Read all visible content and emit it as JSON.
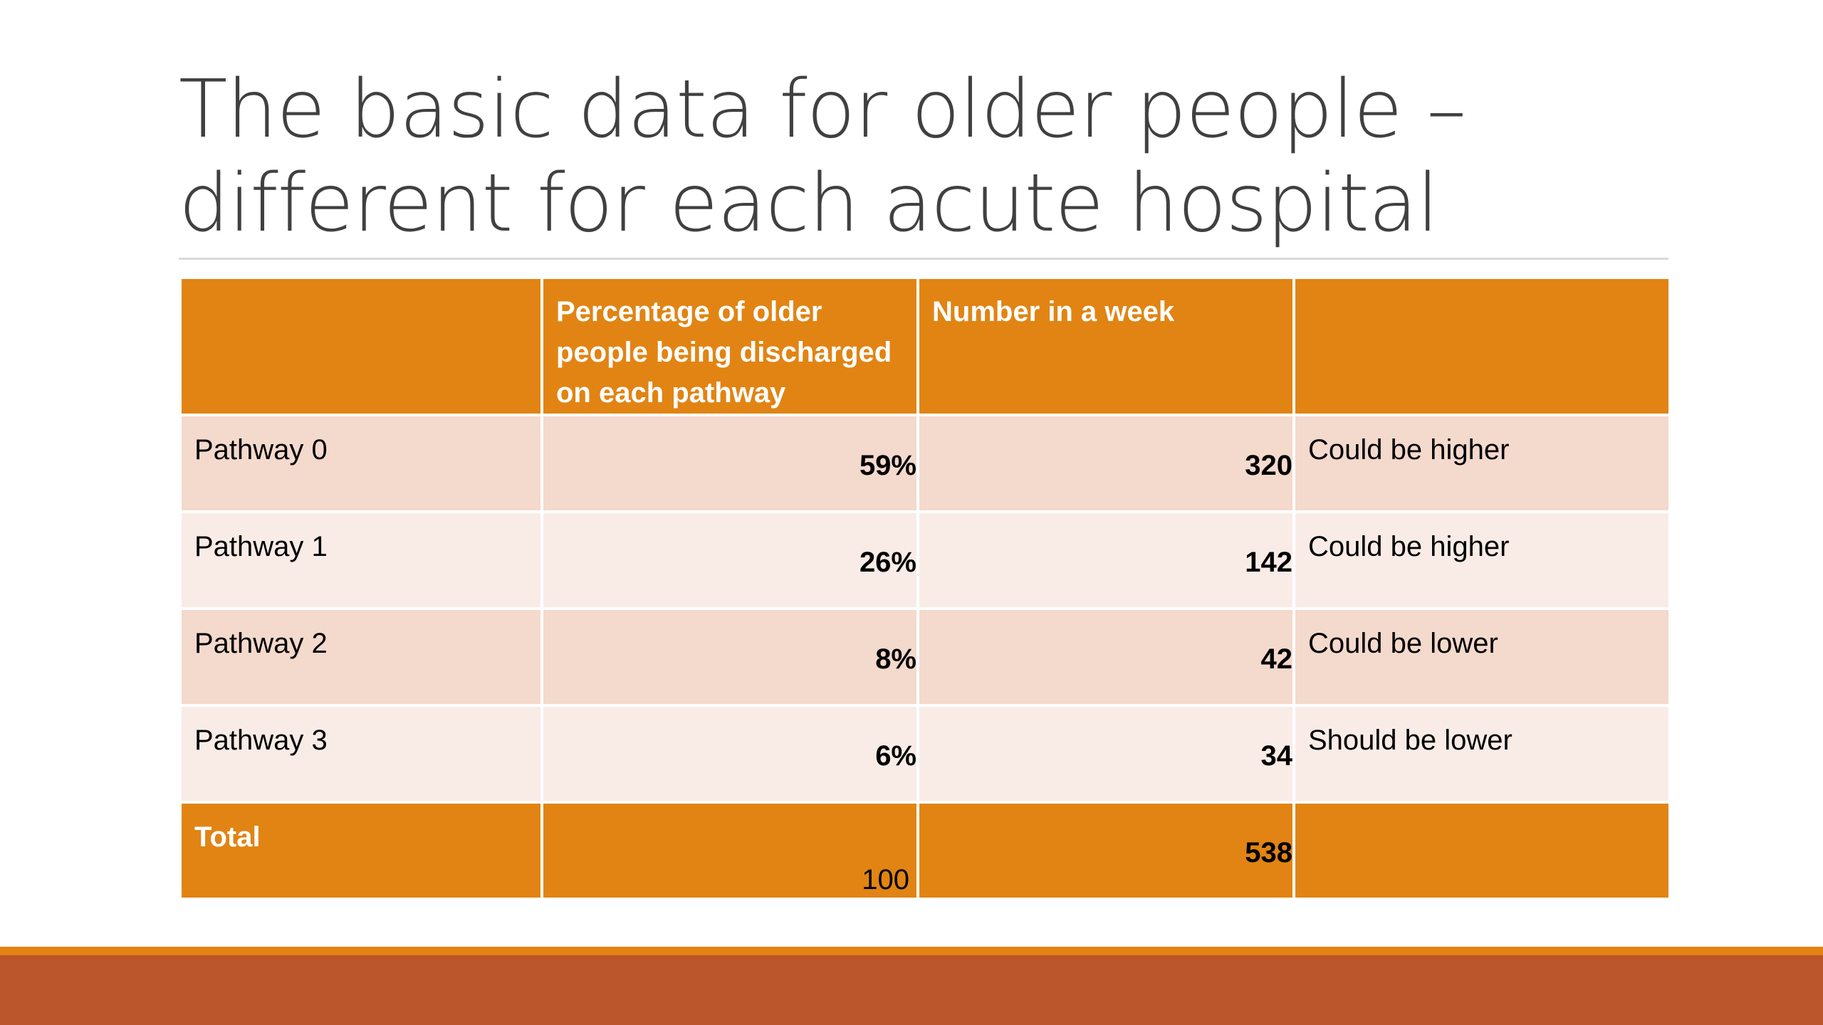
{
  "slide": {
    "title_lines": [
      "The basic data for older people –",
      "different for each acute hospital"
    ]
  },
  "table": {
    "headers": [
      "",
      "Percentage of older people being discharged on each pathway",
      "Number in a week",
      ""
    ],
    "rows": [
      {
        "pathway": "Pathway 0",
        "percentage": "59%",
        "number": "320",
        "note": "Could be higher"
      },
      {
        "pathway": "Pathway 1",
        "percentage": "26%",
        "number": "142",
        "note": "Could be higher"
      },
      {
        "pathway": "Pathway 2",
        "percentage": "8%",
        "number": "42",
        "note": "Could be lower"
      },
      {
        "pathway": "Pathway 3",
        "percentage": "6%",
        "number": "34",
        "note": "Should be lower"
      }
    ],
    "total": {
      "label": "Total",
      "percentage": "100",
      "number": "538",
      "note": ""
    }
  },
  "colors": {
    "accent_orange": "#e18413",
    "footer_rust": "#bb552b",
    "band_dark": "#f4d9cd",
    "band_light": "#f9ece7",
    "title_gray": "#404040"
  }
}
